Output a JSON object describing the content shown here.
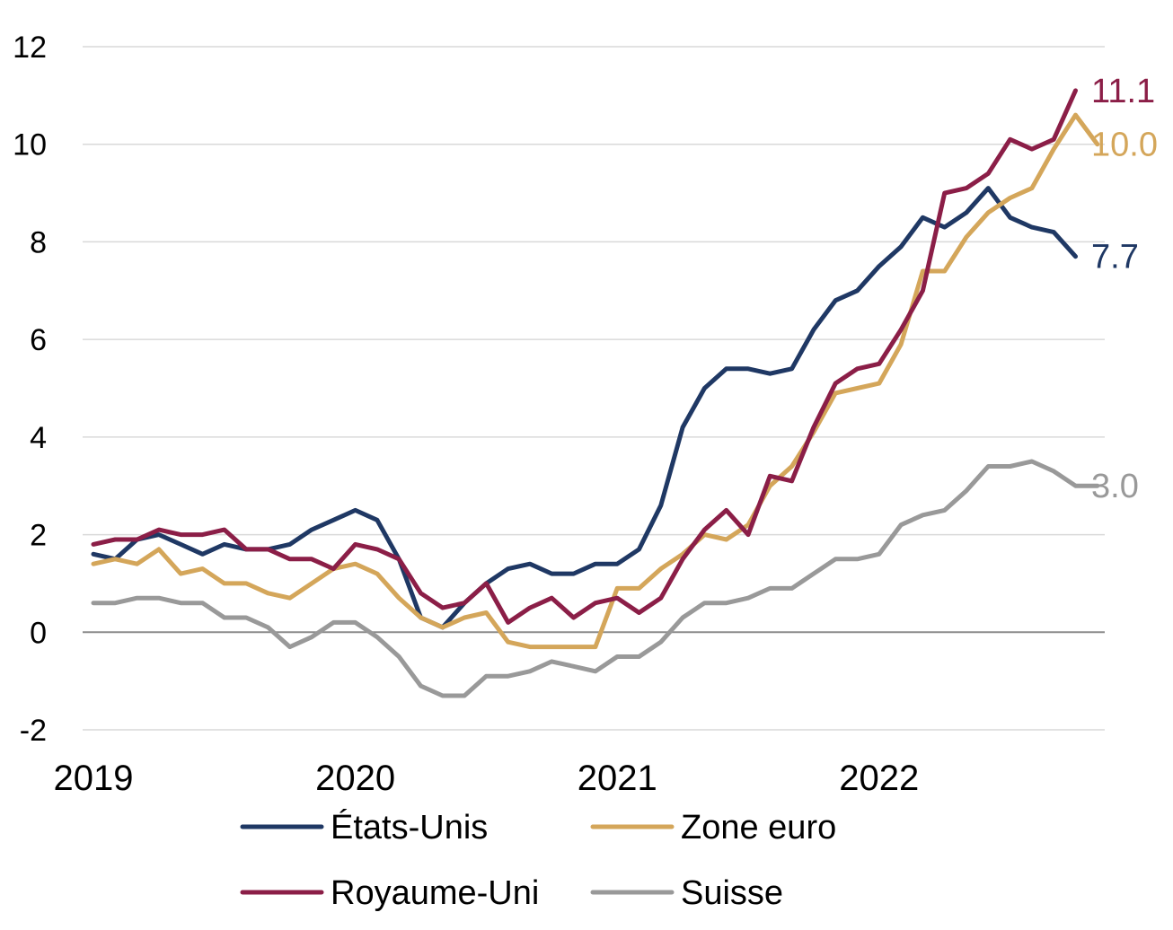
{
  "chart_data": {
    "type": "line",
    "title": "",
    "xlabel": "",
    "ylabel": "",
    "ylim": [
      -2,
      12
    ],
    "yticks": [
      "-2",
      "0",
      "2",
      "4",
      "6",
      "8",
      "10",
      "12"
    ],
    "ytick_values": [
      -2,
      0,
      2,
      4,
      6,
      8,
      10,
      12
    ],
    "x_start": "2019-01",
    "x_end": "2022-12",
    "xticks": [
      "2019",
      "2020",
      "2021",
      "2022"
    ],
    "xtick_positions": [
      "2019-01",
      "2020-01",
      "2021-01",
      "2022-01"
    ],
    "grid": true,
    "zero_line": true,
    "legend_position": "bottom",
    "series": [
      {
        "name": "États-Unis",
        "color": "#1f3864",
        "start": "2019-01",
        "end_label": "7.7",
        "values": [
          1.6,
          1.5,
          1.9,
          2.0,
          1.8,
          1.6,
          1.8,
          1.7,
          1.7,
          1.8,
          2.1,
          2.3,
          2.5,
          2.3,
          1.5,
          0.3,
          0.1,
          0.6,
          1.0,
          1.3,
          1.4,
          1.2,
          1.2,
          1.4,
          1.4,
          1.7,
          2.6,
          4.2,
          5.0,
          5.4,
          5.4,
          5.3,
          5.4,
          6.2,
          6.8,
          7.0,
          7.5,
          7.9,
          8.5,
          8.3,
          8.6,
          9.1,
          8.5,
          8.3,
          8.2,
          7.7
        ]
      },
      {
        "name": "Zone euro",
        "color": "#d4a65a",
        "start": "2019-01",
        "end_label": "10.0",
        "values": [
          1.4,
          1.5,
          1.4,
          1.7,
          1.2,
          1.3,
          1.0,
          1.0,
          0.8,
          0.7,
          1.0,
          1.3,
          1.4,
          1.2,
          0.7,
          0.3,
          0.1,
          0.3,
          0.4,
          -0.2,
          -0.3,
          -0.3,
          -0.3,
          -0.3,
          0.9,
          0.9,
          1.3,
          1.6,
          2.0,
          1.9,
          2.2,
          3.0,
          3.4,
          4.1,
          4.9,
          5.0,
          5.1,
          5.9,
          7.4,
          7.4,
          8.1,
          8.6,
          8.9,
          9.1,
          9.9,
          10.6,
          10.0
        ]
      },
      {
        "name": "Royaume-Uni",
        "color": "#8b1e47",
        "start": "2019-01",
        "end_label": "11.1",
        "values": [
          1.8,
          1.9,
          1.9,
          2.1,
          2.0,
          2.0,
          2.1,
          1.7,
          1.7,
          1.5,
          1.5,
          1.3,
          1.8,
          1.7,
          1.5,
          0.8,
          0.5,
          0.6,
          1.0,
          0.2,
          0.5,
          0.7,
          0.3,
          0.6,
          0.7,
          0.4,
          0.7,
          1.5,
          2.1,
          2.5,
          2.0,
          3.2,
          3.1,
          4.2,
          5.1,
          5.4,
          5.5,
          6.2,
          7.0,
          9.0,
          9.1,
          9.4,
          10.1,
          9.9,
          10.1,
          11.1
        ]
      },
      {
        "name": "Suisse",
        "color": "#999999",
        "start": "2019-01",
        "end_label": "3.0",
        "values": [
          0.6,
          0.6,
          0.7,
          0.7,
          0.6,
          0.6,
          0.3,
          0.3,
          0.1,
          -0.3,
          -0.1,
          0.2,
          0.2,
          -0.1,
          -0.5,
          -1.1,
          -1.3,
          -1.3,
          -0.9,
          -0.9,
          -0.8,
          -0.6,
          -0.7,
          -0.8,
          -0.5,
          -0.5,
          -0.2,
          0.3,
          0.6,
          0.6,
          0.7,
          0.9,
          0.9,
          1.2,
          1.5,
          1.5,
          1.6,
          2.2,
          2.4,
          2.5,
          2.9,
          3.4,
          3.4,
          3.5,
          3.3,
          3.0,
          3.0
        ]
      }
    ]
  }
}
